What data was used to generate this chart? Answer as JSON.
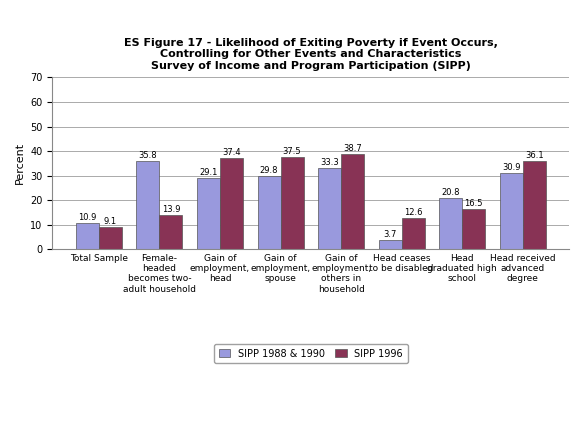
{
  "title": "ES Figure 17 - Likelihood of Exiting Poverty if Event Occurs,\nControlling for Other Events and Characteristics\nSurvey of Income and Program Participation (SIPP)",
  "categories": [
    "Total Sample",
    "Female-\nheaded\nbecomes two-\nadult household",
    "Gain of\nemployment,\nhead",
    "Gain of\nemployment,\nspouse",
    "Gain of\nemployment,\nothers in\nhousehold",
    "Head ceases\nto be disabled",
    "Head\ngraduated high\nschool",
    "Head received\nadvanced\ndegree"
  ],
  "sipp_1988_1990": [
    10.9,
    35.8,
    29.1,
    29.8,
    33.3,
    3.7,
    20.8,
    30.9
  ],
  "sipp_1996": [
    9.1,
    13.9,
    37.4,
    37.5,
    38.7,
    12.6,
    16.5,
    36.1
  ],
  "color_1988": "#9999dd",
  "color_1996": "#883355",
  "ylabel": "Percent",
  "ylim": [
    0,
    70
  ],
  "yticks": [
    0,
    10,
    20,
    30,
    40,
    50,
    60,
    70
  ],
  "legend_labels": [
    "SIPP 1988 & 1990",
    "SIPP 1996"
  ],
  "bar_width": 0.38,
  "title_fontsize": 8.0,
  "label_fontsize": 6.5,
  "tick_fontsize": 7.0,
  "value_fontsize": 6.0,
  "ylabel_fontsize": 8.0
}
